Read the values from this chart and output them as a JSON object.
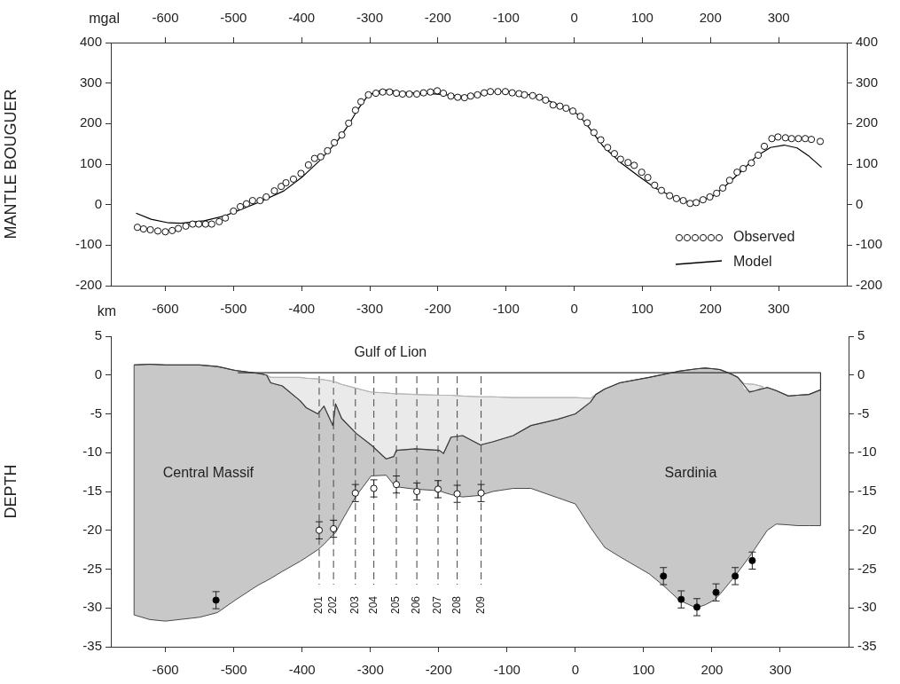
{
  "chart_data": [
    {
      "type": "scatter",
      "xlabel": "km",
      "ylabel": "MANTLE BOUGUER",
      "annotations": [
        "mgal"
      ],
      "xlim": [
        -680,
        400
      ],
      "xticks": [
        -600,
        -500,
        -400,
        -300,
        -200,
        -100,
        0,
        100,
        200,
        300
      ],
      "x2lim": [
        -680,
        400
      ],
      "x2ticks": [
        -600,
        -500,
        -400,
        -300,
        -200,
        -100,
        0,
        100,
        200,
        300
      ],
      "ylim": [
        -200,
        400
      ],
      "yticks": [
        -200,
        -100,
        0,
        100,
        200,
        300,
        400
      ],
      "y2lim": [
        -200,
        400
      ],
      "y2ticks": [
        -200,
        -100,
        0,
        100,
        200,
        300,
        400
      ],
      "legend": "bottom right",
      "series": [
        {
          "name": "Observed",
          "marker": "circle",
          "color": "#ffffff",
          "x": [
            -641,
            -632,
            -622,
            -611,
            -600,
            -590,
            -581,
            -570,
            -560,
            -551,
            -541,
            -532,
            -521,
            -512,
            -500,
            -490,
            -481,
            -472,
            -461,
            -452,
            -440,
            -430,
            -423,
            -412,
            -401,
            -390,
            -381,
            -372,
            -362,
            -352,
            -341,
            -331,
            -321,
            -313,
            -302,
            -291,
            -281,
            -271,
            -261,
            -252,
            -242,
            -231,
            -221,
            -211,
            -201,
            -192,
            -181,
            -171,
            -161,
            -152,
            -142,
            -132,
            -123,
            -112,
            -101,
            -91,
            -81,
            -73,
            -61,
            -51,
            -42,
            -31,
            -21,
            -12,
            -2,
            9,
            19,
            29,
            39,
            49,
            59,
            68,
            79,
            88,
            99,
            108,
            118,
            128,
            140,
            150,
            160,
            170,
            179,
            189,
            199,
            209,
            218,
            228,
            239,
            248,
            260,
            270,
            279,
            290,
            299,
            310,
            319,
            329,
            339,
            348,
            361
          ],
          "values": [
            -56,
            -60,
            -62,
            -65,
            -67,
            -64,
            -59,
            -53,
            -48,
            -48,
            -48,
            -48,
            -42,
            -33,
            -16,
            -5,
            2,
            10,
            10,
            19,
            34,
            45,
            54,
            63,
            77,
            98,
            114,
            118,
            133,
            153,
            172,
            201,
            233,
            254,
            271,
            275,
            278,
            278,
            275,
            273,
            273,
            273,
            276,
            278,
            281,
            275,
            268,
            265,
            264,
            268,
            271,
            276,
            279,
            279,
            279,
            276,
            274,
            271,
            269,
            265,
            258,
            246,
            243,
            238,
            231,
            218,
            202,
            178,
            160,
            141,
            126,
            112,
            104,
            97,
            80,
            67,
            48,
            35,
            22,
            15,
            10,
            3,
            5,
            12,
            19,
            28,
            41,
            60,
            80,
            89,
            103,
            122,
            144,
            163,
            167,
            165,
            163,
            163,
            163,
            161,
            156
          ]
        },
        {
          "name": "Model",
          "type": "line",
          "color": "#000000",
          "x": [
            -643,
            -621,
            -595,
            -577,
            -543,
            -513,
            -491,
            -461,
            -426,
            -400,
            -374,
            -348,
            -331,
            -318,
            -305,
            -292,
            -274,
            -253,
            -210,
            -188,
            -166,
            -142,
            -123,
            -101,
            -80,
            -54,
            -23,
            -2,
            7,
            20,
            42,
            68,
            94,
            119,
            145,
            167,
            180,
            202,
            223,
            245,
            267,
            288,
            308,
            327,
            345,
            363
          ],
          "values": [
            -21,
            -36,
            -45,
            -46,
            -40,
            -28,
            -13,
            7,
            34,
            67,
            108,
            156,
            197,
            234,
            264,
            279,
            283,
            277,
            274,
            271,
            268,
            271,
            278,
            279,
            275,
            268,
            246,
            231,
            220,
            194,
            145,
            104,
            71,
            41,
            19,
            7,
            7,
            19,
            48,
            82,
            119,
            141,
            147,
            140,
            119,
            92
          ]
        }
      ]
    },
    {
      "type": "line",
      "ylabel": "DEPTH",
      "xlim": [
        -680,
        400
      ],
      "xticks": [
        -600,
        -500,
        -400,
        -300,
        -200,
        -100,
        0,
        100,
        200,
        300
      ],
      "ylim": [
        -35,
        5
      ],
      "yticks": [
        5,
        0,
        -5,
        -10,
        -15,
        -20,
        -25,
        -30,
        -35
      ],
      "y2lim": [
        -35,
        5
      ],
      "y2ticks": [
        5,
        0,
        -5,
        -10,
        -15,
        -20,
        -25,
        -30,
        -35
      ],
      "annotations": [
        "Gulf of Lion",
        "Central Massif",
        "Sardinia",
        "201",
        "202",
        "203",
        "204",
        "205",
        "206",
        "207",
        "208",
        "209"
      ],
      "ref_lines": [
        {
          "axis": "x",
          "value": -375,
          "line_style": "dashed",
          "color": "#555555"
        },
        {
          "axis": "x",
          "value": -354,
          "line_style": "dashed",
          "color": "#555555"
        },
        {
          "axis": "x",
          "value": -322,
          "line_style": "dashed",
          "color": "#555555"
        },
        {
          "axis": "x",
          "value": -295,
          "line_style": "dashed",
          "color": "#555555"
        },
        {
          "axis": "x",
          "value": -262,
          "line_style": "dashed",
          "color": "#555555"
        },
        {
          "axis": "x",
          "value": -232,
          "line_style": "dashed",
          "color": "#555555"
        },
        {
          "axis": "x",
          "value": -201,
          "line_style": "dashed",
          "color": "#555555"
        },
        {
          "axis": "x",
          "value": -173,
          "line_style": "dashed",
          "color": "#555555"
        },
        {
          "axis": "x",
          "value": -138,
          "line_style": "dashed",
          "color": "#555555"
        }
      ],
      "series": [
        {
          "color": "#3a3a3a",
          "x": [
            -646,
            -623,
            -600,
            -550,
            -524,
            -498,
            -472,
            -463,
            -452,
            -446,
            -429,
            -403,
            -394,
            -377,
            -368,
            -355,
            -351,
            -342,
            -321,
            -299,
            -277,
            -266,
            -262,
            -234,
            -199,
            -193,
            -182,
            -165,
            -139,
            -121,
            -91,
            -65,
            -26,
            0,
            22,
            30,
            43,
            65,
            108,
            130,
            152,
            177,
            190,
            203,
            212,
            229,
            238,
            255,
            281,
            294,
            312,
            325,
            342,
            359
          ],
          "values": [
            1.3,
            1.4,
            1.3,
            1.3,
            1.1,
            0.6,
            0.3,
            0.2,
            0,
            -1,
            -1.4,
            -3.3,
            -4.2,
            -5,
            -4,
            -6.5,
            -3.7,
            -5.6,
            -7.5,
            -9,
            -10.8,
            -10.5,
            -9.7,
            -9.5,
            -9.7,
            -10.1,
            -8,
            -7.8,
            -9,
            -8.6,
            -7.8,
            -6.5,
            -5.7,
            -5,
            -3.5,
            -2.5,
            -1.8,
            -1,
            -0.3,
            0.1,
            0.5,
            0.8,
            0.9,
            0.8,
            0.7,
            0.1,
            -0.3,
            -2.2,
            -1.6,
            -2,
            -2.7,
            -2.6,
            -2.5,
            -1.9
          ],
          "upper": [
            1.3,
            1.4,
            1.3,
            1.3,
            1.1,
            0.6,
            0.3,
            0.2,
            0,
            -1,
            -1.4,
            -3.3,
            -4.2,
            -5,
            -4,
            -6.5,
            -3.7,
            -5.6,
            -7.5,
            -9,
            -10.8,
            -10.5,
            -9.7,
            -9.5,
            -9.7,
            -10.1,
            -8,
            -7.8,
            -9,
            -8.6,
            -7.8,
            -6.5,
            -5.7,
            -5,
            -3.5,
            -2.5,
            -1.8,
            -1,
            -0.3,
            0.1,
            0.5,
            0.8,
            0.9,
            0.8,
            0.7,
            0.1,
            -0.3,
            -2.2,
            -1.6,
            -2,
            -2.7,
            -2.6,
            -2.5,
            -1.9
          ],
          "lower": [
            -30.9,
            -31.5,
            -31.7,
            -31.2,
            -30.6,
            -29,
            -27.5,
            -27,
            -26.5,
            -26.2,
            -25.3,
            -24,
            -23.5,
            -22.5,
            -21.8,
            -20.6,
            -20.3,
            -18.8,
            -15.6,
            -13,
            -12.9,
            -14.1,
            -14.4,
            -14.7,
            -14.9,
            -15.1,
            -15.4,
            -15.7,
            -15.5,
            -15,
            -14.6,
            -14.6,
            -15.8,
            -16.6,
            -19.6,
            -20.6,
            -22.2,
            -23.4,
            -25.6,
            -27.2,
            -29,
            -30,
            -29.6,
            -29,
            -28.2,
            -26.4,
            -25.4,
            -23.4,
            -20,
            -19.2,
            -19.3,
            -19.4,
            -19.4,
            -19.4
          ]
        },
        {
          "color": "#b5b5b5",
          "x": [
            -452,
            -446,
            -429,
            -403,
            -394,
            -377,
            -368,
            -355,
            -351,
            -342,
            -321,
            -299,
            -277,
            -266,
            -262,
            -234,
            -199,
            -193,
            -182,
            -165,
            -139,
            -121,
            -91,
            -65,
            -26,
            0,
            22,
            30,
            130,
            238,
            247,
            262,
            275
          ],
          "values": [
            0,
            -0.3,
            -0.3,
            -0.3,
            -0.4,
            -0.5,
            -0.6,
            -0.8,
            -0.9,
            -1.2,
            -1.7,
            -2.2,
            -2.3,
            -2.4,
            -2.4,
            -2.5,
            -2.6,
            -2.6,
            -2.6,
            -2.7,
            -2.8,
            -2.8,
            -2.9,
            -2.9,
            -2.9,
            -2.9,
            -3,
            -2.5,
            null,
            -0.3,
            -1.1,
            -1.2,
            -1.5
          ],
          "upper": [
            0,
            -0.3,
            -0.3,
            -0.3,
            -0.4,
            -0.5,
            -0.6,
            -0.8,
            -0.9,
            -1.2,
            -1.7,
            -2.2,
            -2.3,
            -2.4,
            -2.4,
            -2.5,
            -2.6,
            -2.6,
            -2.6,
            -2.7,
            -2.8,
            -2.8,
            -2.9,
            -2.9,
            -2.9,
            -2.9,
            -3,
            -2.5,
            null,
            -0.3,
            -1.1,
            -1.2,
            -1.5
          ],
          "lower": [
            0,
            -1,
            -1.4,
            -3.3,
            -4.2,
            -5,
            -4,
            -6.5,
            -3.7,
            -5.6,
            -7.5,
            -9,
            -10.8,
            -10.5,
            -9.7,
            -9.5,
            -9.7,
            -10.1,
            -8,
            -7.8,
            -9,
            -8.6,
            -7.8,
            -6.5,
            -5.7,
            -5,
            -3.5,
            -2.5,
            null,
            -0.3,
            -1.9,
            -2.1,
            -1.5
          ]
        },
        {
          "color": "#333333",
          "x": [
            -494,
            359,
            359
          ],
          "values": [
            0.3,
            0.3,
            -1.9
          ]
        },
        {
          "type": "scatter",
          "marker": "circle",
          "color": "#ffffff",
          "x": [
            -375,
            -354,
            -322,
            -295,
            -262,
            -232,
            -201,
            -173,
            -138
          ],
          "values": [
            -20,
            -19.8,
            -15.2,
            -14.6,
            -14.1,
            -15,
            -14.7,
            -15.3,
            -15.2
          ],
          "errors": [
            1.1,
            1.1,
            1.1,
            1.1,
            1.1,
            1.1,
            1.1,
            1.1,
            1.1
          ]
        },
        {
          "type": "scatter",
          "marker": "circle",
          "color": "#000000",
          "x": [
            -526,
            129,
            155,
            178,
            206,
            234,
            259
          ],
          "values": [
            -29,
            -25.9,
            -28.9,
            -29.9,
            -28,
            -25.9,
            -23.9
          ],
          "errors": [
            1.1,
            1.1,
            1.1,
            1.1,
            1.1,
            1.1,
            1.1
          ]
        }
      ]
    }
  ]
}
